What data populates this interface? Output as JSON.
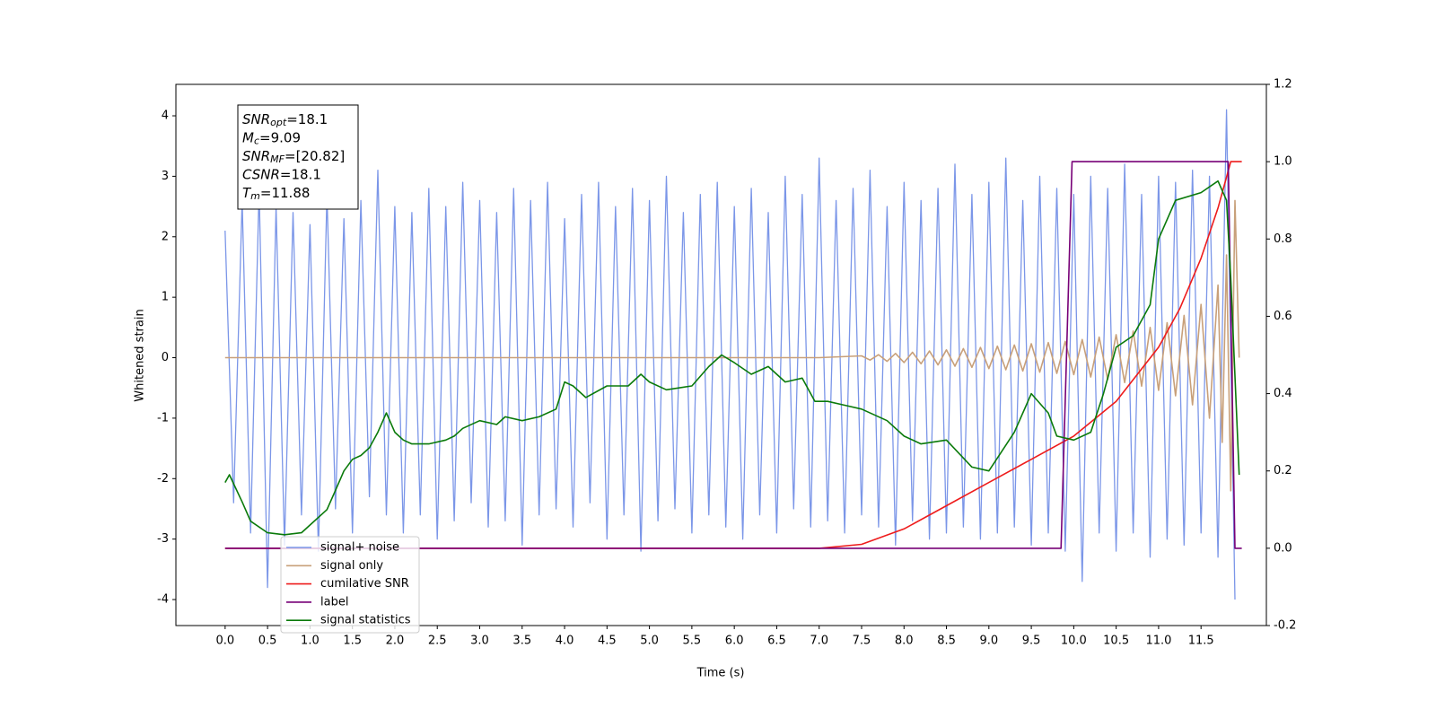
{
  "chart_data": {
    "type": "line",
    "xlabel": "Time (s)",
    "ylabel": "Whitened strain",
    "xlim": [
      -0.58,
      12.27
    ],
    "ylim": [
      -4.43,
      4.52
    ],
    "y2lim": [
      -0.2,
      1.2
    ],
    "xticks": [
      {
        "value": 0,
        "label": "0.0"
      },
      0.5,
      {
        "value": 1,
        "label": "1.0"
      },
      1.5,
      {
        "value": 2,
        "label": "2.0"
      },
      2.5,
      {
        "value": 3,
        "label": "3.0"
      },
      3.5,
      {
        "value": 4,
        "label": "4.0"
      },
      4.5,
      {
        "value": 5,
        "label": "5.0"
      },
      5.5,
      {
        "value": 6,
        "label": "6.0"
      },
      6.5,
      {
        "value": 7,
        "label": "7.0"
      },
      7.5,
      {
        "value": 8,
        "label": "8.0"
      },
      8.5,
      {
        "value": 9,
        "label": "9.0"
      },
      9.5,
      {
        "value": 10,
        "label": "10.0"
      },
      10.5,
      {
        "value": 11,
        "label": "11.0"
      },
      11.5
    ],
    "yticks": [
      -4,
      -3,
      -2,
      -1,
      0,
      1,
      2,
      3,
      4
    ],
    "y2ticks": [
      -0.2,
      {
        "value": 0,
        "label": "0.0"
      },
      0.2,
      0.4,
      0.6,
      0.8,
      {
        "value": 1,
        "label": "1.0"
      },
      1.2
    ],
    "legend": "lower left",
    "annotation": [
      {
        "base": "SNR",
        "sub": "opt",
        "text": "=18.1"
      },
      {
        "base": "M",
        "sub": "c",
        "text": "=9.09"
      },
      {
        "base": "SNR",
        "sub": "MF",
        "text": "=[20.82]"
      },
      {
        "base": "CSNR",
        "sub": null,
        "text": "=18.1"
      },
      {
        "base": "T",
        "sub": "m",
        "text": "=11.88"
      }
    ],
    "series": [
      {
        "name": "signal+ noise",
        "color": "#7b96e8",
        "x": [
          0,
          0.1,
          0.2,
          0.3,
          0.4,
          0.5,
          0.6,
          0.7,
          0.8,
          0.9,
          1,
          1.1,
          1.2,
          1.3,
          1.4,
          1.5,
          1.6,
          1.7,
          1.8,
          1.9,
          2,
          2.1,
          2.2,
          2.3,
          2.4,
          2.5,
          2.6,
          2.7,
          2.8,
          2.9,
          3,
          3.1,
          3.2,
          3.3,
          3.4,
          3.5,
          3.6,
          3.7,
          3.8,
          3.9,
          4,
          4.1,
          4.2,
          4.3,
          4.4,
          4.5,
          4.6,
          4.7,
          4.8,
          4.9,
          5,
          5.1,
          5.2,
          5.3,
          5.4,
          5.5,
          5.6,
          5.7,
          5.8,
          5.9,
          6,
          6.1,
          6.2,
          6.3,
          6.4,
          6.5,
          6.6,
          6.7,
          6.8,
          6.9,
          7,
          7.1,
          7.2,
          7.3,
          7.4,
          7.5,
          7.6,
          7.7,
          7.8,
          7.9,
          8,
          8.1,
          8.2,
          8.3,
          8.4,
          8.5,
          8.6,
          8.7,
          8.8,
          8.9,
          9,
          9.1,
          9.2,
          9.3,
          9.4,
          9.5,
          9.6,
          9.7,
          9.8,
          9.9,
          10,
          10.1,
          10.2,
          10.3,
          10.4,
          10.5,
          10.6,
          10.7,
          10.8,
          10.9,
          11,
          11.1,
          11.2,
          11.3,
          11.4,
          11.5,
          11.6,
          11.7,
          11.8,
          11.9
        ],
        "values": [
          2.1,
          -2.4,
          2.6,
          -2.9,
          2.8,
          -3.8,
          2.5,
          -3.1,
          2.4,
          -2.6,
          2.2,
          -3.2,
          2.7,
          -2.5,
          2.3,
          -2.9,
          2.6,
          -2.3,
          3.1,
          -2.6,
          2.5,
          -2.9,
          2.4,
          -2.6,
          2.8,
          -3.0,
          2.5,
          -2.7,
          2.9,
          -2.4,
          2.6,
          -2.8,
          2.4,
          -2.7,
          2.8,
          -3.1,
          2.6,
          -2.6,
          2.9,
          -2.5,
          2.3,
          -2.8,
          2.7,
          -2.4,
          2.9,
          -3.0,
          2.5,
          -2.6,
          2.8,
          -3.2,
          2.6,
          -2.7,
          3.0,
          -2.5,
          2.4,
          -2.9,
          2.7,
          -2.6,
          2.9,
          -2.8,
          2.5,
          -3.0,
          2.8,
          -2.6,
          2.4,
          -2.9,
          3.0,
          -2.5,
          2.7,
          -2.8,
          3.3,
          -2.7,
          2.6,
          -2.9,
          2.8,
          -2.6,
          3.1,
          -2.8,
          2.5,
          -3.1,
          2.9,
          -2.7,
          2.6,
          -3.0,
          2.8,
          -2.9,
          3.2,
          -2.8,
          2.7,
          -3.0,
          2.9,
          -2.9,
          3.3,
          -2.8,
          2.6,
          -3.1,
          3.0,
          -2.9,
          2.8,
          -3.2,
          2.7,
          -3.7,
          3.0,
          -2.9,
          2.8,
          -3.2,
          3.2,
          -2.9,
          2.7,
          -3.3,
          3.0,
          -3.0,
          2.9,
          -3.1,
          3.1,
          -2.9,
          3.0,
          -3.3,
          4.1,
          -4.0
        ]
      },
      {
        "name": "signal only",
        "color": "#c8a07a",
        "x": [
          0,
          7,
          7.5,
          7.6,
          7.7,
          7.8,
          7.9,
          8,
          8.1,
          8.2,
          8.3,
          8.4,
          8.5,
          8.6,
          8.7,
          8.8,
          8.9,
          9,
          9.1,
          9.2,
          9.3,
          9.4,
          9.5,
          9.6,
          9.7,
          9.8,
          9.9,
          10,
          10.1,
          10.2,
          10.3,
          10.4,
          10.5,
          10.6,
          10.7,
          10.8,
          10.9,
          11,
          11.1,
          11.2,
          11.3,
          11.4,
          11.5,
          11.6,
          11.7,
          11.75,
          11.8,
          11.85,
          11.9,
          11.95
        ],
        "values": [
          0,
          0,
          0.03,
          -0.04,
          0.05,
          -0.06,
          0.07,
          -0.08,
          0.09,
          -0.1,
          0.11,
          -0.12,
          0.13,
          -0.14,
          0.15,
          -0.16,
          0.17,
          -0.18,
          0.19,
          -0.2,
          0.21,
          -0.22,
          0.23,
          -0.24,
          0.25,
          -0.26,
          0.27,
          -0.28,
          0.3,
          -0.32,
          0.34,
          -0.36,
          0.38,
          -0.41,
          0.44,
          -0.47,
          0.5,
          -0.54,
          0.58,
          -0.63,
          0.7,
          -0.78,
          0.88,
          -1.0,
          1.2,
          -1.4,
          1.7,
          -2.2,
          2.6,
          0
        ]
      },
      {
        "name": "cumilative SNR",
        "color": "#ee1c1c",
        "axis": "y2",
        "x": [
          0,
          7,
          7.5,
          8,
          8.5,
          9,
          9.5,
          10,
          10.5,
          11,
          11.25,
          11.5,
          11.7,
          11.8,
          11.85,
          11.98
        ],
        "values": [
          0,
          0,
          0.01,
          0.05,
          0.11,
          0.17,
          0.23,
          0.29,
          0.38,
          0.52,
          0.62,
          0.75,
          0.88,
          0.96,
          1,
          1
        ]
      },
      {
        "name": "label",
        "color": "#770077",
        "axis": "y2",
        "x": [
          0,
          9.85,
          9.98,
          11.82,
          11.9,
          11.98
        ],
        "values": [
          0,
          0,
          1,
          1,
          0,
          0
        ]
      },
      {
        "name": "signal statistics",
        "color": "#0a7a0a",
        "axis": "y2",
        "x": [
          0,
          0.05,
          0.2,
          0.3,
          0.5,
          0.7,
          0.9,
          1,
          1.2,
          1.3,
          1.4,
          1.5,
          1.6,
          1.7,
          1.8,
          1.9,
          2,
          2.1,
          2.2,
          2.4,
          2.6,
          2.7,
          2.8,
          3,
          3.2,
          3.3,
          3.5,
          3.7,
          3.9,
          4,
          4.1,
          4.25,
          4.5,
          4.75,
          4.9,
          5,
          5.2,
          5.5,
          5.7,
          5.85,
          6,
          6.2,
          6.4,
          6.6,
          6.8,
          6.95,
          7.1,
          7.3,
          7.5,
          7.8,
          8,
          8.2,
          8.5,
          8.8,
          9,
          9.15,
          9.3,
          9.5,
          9.7,
          9.8,
          10,
          10.2,
          10.35,
          10.5,
          10.7,
          10.9,
          11,
          11.2,
          11.5,
          11.7,
          11.8,
          11.85,
          11.95
        ],
        "values": [
          0.17,
          0.19,
          0.12,
          0.07,
          0.04,
          0.035,
          0.04,
          0.06,
          0.1,
          0.15,
          0.2,
          0.23,
          0.24,
          0.26,
          0.3,
          0.35,
          0.3,
          0.28,
          0.27,
          0.27,
          0.28,
          0.29,
          0.31,
          0.33,
          0.32,
          0.34,
          0.33,
          0.34,
          0.36,
          0.43,
          0.42,
          0.39,
          0.42,
          0.42,
          0.45,
          0.43,
          0.41,
          0.42,
          0.47,
          0.5,
          0.48,
          0.45,
          0.47,
          0.43,
          0.44,
          0.38,
          0.38,
          0.37,
          0.36,
          0.33,
          0.29,
          0.27,
          0.28,
          0.21,
          0.2,
          0.25,
          0.3,
          0.4,
          0.35,
          0.29,
          0.28,
          0.3,
          0.4,
          0.52,
          0.55,
          0.63,
          0.8,
          0.9,
          0.92,
          0.95,
          0.9,
          0.7,
          0.19
        ]
      }
    ]
  }
}
